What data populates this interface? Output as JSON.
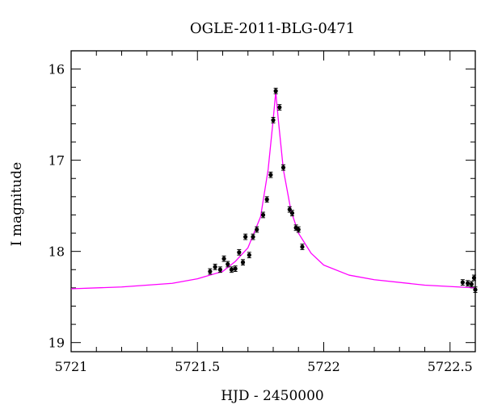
{
  "chart_data": {
    "type": "scatter",
    "title": "OGLE-2011-BLG-0471",
    "xlabel": "HJD - 2450000",
    "ylabel": "I magnitude",
    "xlim": [
      5721.0,
      5722.6
    ],
    "ylim": [
      19.1,
      15.8
    ],
    "y_inverted": true,
    "grid": false,
    "x_ticks": [
      {
        "value": 5721.0,
        "label": "5721"
      },
      {
        "value": 5721.5,
        "label": "5721.5"
      },
      {
        "value": 5722.0,
        "label": "5722"
      },
      {
        "value": 5722.5,
        "label": "5722.5"
      }
    ],
    "y_ticks": [
      {
        "value": 16,
        "label": "16"
      },
      {
        "value": 17,
        "label": "17"
      },
      {
        "value": 18,
        "label": "18"
      },
      {
        "value": 19,
        "label": "19"
      }
    ],
    "series": [
      {
        "kind": "points",
        "color": "#000000",
        "points": [
          {
            "x": 5721.55,
            "y": 18.22,
            "err": 0.03
          },
          {
            "x": 5721.57,
            "y": 18.17,
            "err": 0.03
          },
          {
            "x": 5721.59,
            "y": 18.2,
            "err": 0.03
          },
          {
            "x": 5721.605,
            "y": 18.08,
            "err": 0.03
          },
          {
            "x": 5721.62,
            "y": 18.14,
            "err": 0.03
          },
          {
            "x": 5721.635,
            "y": 18.2,
            "err": 0.03
          },
          {
            "x": 5721.65,
            "y": 18.19,
            "err": 0.03
          },
          {
            "x": 5721.665,
            "y": 18.01,
            "err": 0.03
          },
          {
            "x": 5721.68,
            "y": 18.12,
            "err": 0.03
          },
          {
            "x": 5721.69,
            "y": 17.84,
            "err": 0.03
          },
          {
            "x": 5721.705,
            "y": 18.04,
            "err": 0.03
          },
          {
            "x": 5721.72,
            "y": 17.84,
            "err": 0.03
          },
          {
            "x": 5721.735,
            "y": 17.76,
            "err": 0.03
          },
          {
            "x": 5721.76,
            "y": 17.6,
            "err": 0.03
          },
          {
            "x": 5721.775,
            "y": 17.43,
            "err": 0.03
          },
          {
            "x": 5721.79,
            "y": 17.16,
            "err": 0.03
          },
          {
            "x": 5721.8,
            "y": 16.56,
            "err": 0.03
          },
          {
            "x": 5721.81,
            "y": 16.24,
            "err": 0.03
          },
          {
            "x": 5721.825,
            "y": 16.42,
            "err": 0.03
          },
          {
            "x": 5721.84,
            "y": 17.08,
            "err": 0.03
          },
          {
            "x": 5721.865,
            "y": 17.54,
            "err": 0.03
          },
          {
            "x": 5721.875,
            "y": 17.58,
            "err": 0.03
          },
          {
            "x": 5721.89,
            "y": 17.74,
            "err": 0.03
          },
          {
            "x": 5721.9,
            "y": 17.76,
            "err": 0.03
          },
          {
            "x": 5721.915,
            "y": 17.95,
            "err": 0.03
          },
          {
            "x": 5722.55,
            "y": 18.34,
            "err": 0.03
          },
          {
            "x": 5722.57,
            "y": 18.35,
            "err": 0.03
          },
          {
            "x": 5722.585,
            "y": 18.36,
            "err": 0.03
          },
          {
            "x": 5722.595,
            "y": 18.29,
            "err": 0.03
          },
          {
            "x": 5722.6,
            "y": 18.42,
            "err": 0.03
          }
        ]
      },
      {
        "kind": "model",
        "color": "#ff00ff",
        "x": [
          5721.0,
          5721.2,
          5721.4,
          5721.5,
          5721.6,
          5721.65,
          5721.7,
          5721.75,
          5721.78,
          5721.8,
          5721.81,
          5721.82,
          5721.84,
          5721.87,
          5721.9,
          5721.95,
          5722.0,
          5722.1,
          5722.2,
          5722.4,
          5722.6
        ],
        "y": [
          18.41,
          18.39,
          18.35,
          18.3,
          18.22,
          18.11,
          17.96,
          17.62,
          17.1,
          16.55,
          16.25,
          16.55,
          17.1,
          17.55,
          17.8,
          18.02,
          18.15,
          18.26,
          18.31,
          18.37,
          18.4
        ]
      }
    ]
  }
}
